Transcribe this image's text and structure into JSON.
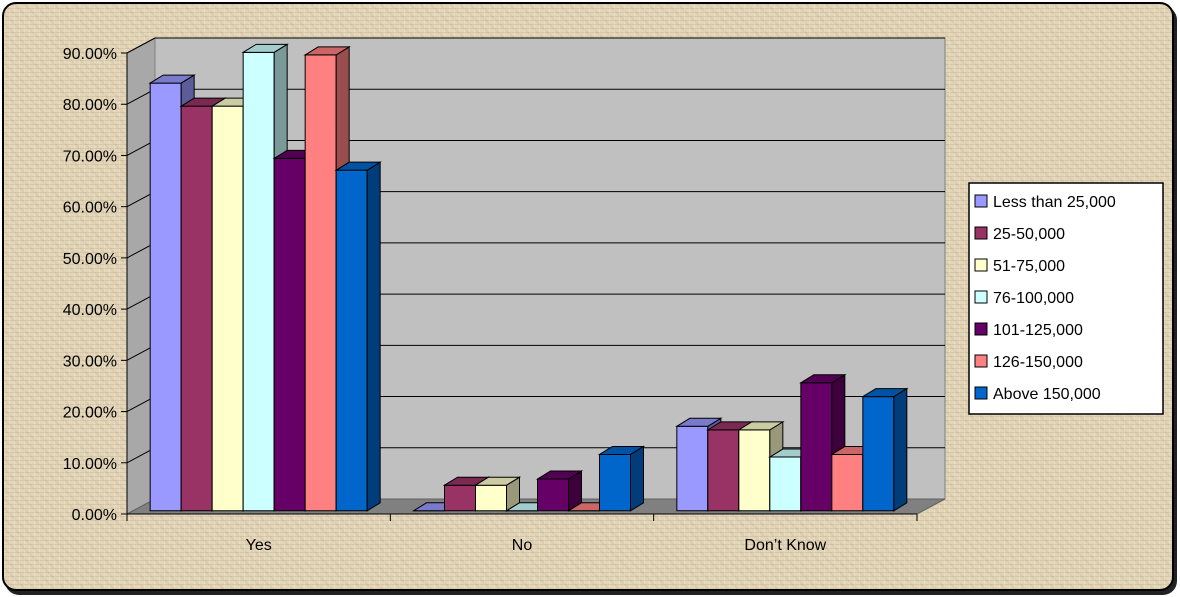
{
  "chart_data": {
    "type": "bar",
    "categories": [
      "Yes",
      "No",
      "Don’t Know"
    ],
    "series": [
      {
        "name": "Less than 25,000",
        "color": "#9999ff",
        "values": [
          83.5,
          0.0,
          16.5
        ]
      },
      {
        "name": "25-50,000",
        "color": "#993366",
        "values": [
          79.0,
          5.0,
          15.8
        ]
      },
      {
        "name": "51-75,000",
        "color": "#ffffcc",
        "values": [
          79.0,
          5.0,
          15.8
        ]
      },
      {
        "name": "76-100,000",
        "color": "#ccffff",
        "values": [
          89.5,
          0.0,
          10.5
        ]
      },
      {
        "name": "101-125,000",
        "color": "#660066",
        "values": [
          68.8,
          6.2,
          25.0
        ]
      },
      {
        "name": "126-150,000",
        "color": "#ff8080",
        "values": [
          89.0,
          0.0,
          11.0
        ]
      },
      {
        "name": "Above 150,000",
        "color": "#0066cc",
        "values": [
          66.5,
          11.0,
          22.3
        ]
      }
    ],
    "yticks": [
      "0.00%",
      "10.00%",
      "20.00%",
      "30.00%",
      "40.00%",
      "50.00%",
      "60.00%",
      "70.00%",
      "80.00%",
      "90.00%"
    ],
    "ylim": [
      0,
      90
    ],
    "title": "",
    "xlabel": "",
    "ylabel": "",
    "grid": true,
    "legend_position": "right",
    "plot_wall_color": "#c0c0c0",
    "floor_color": "#808080"
  }
}
